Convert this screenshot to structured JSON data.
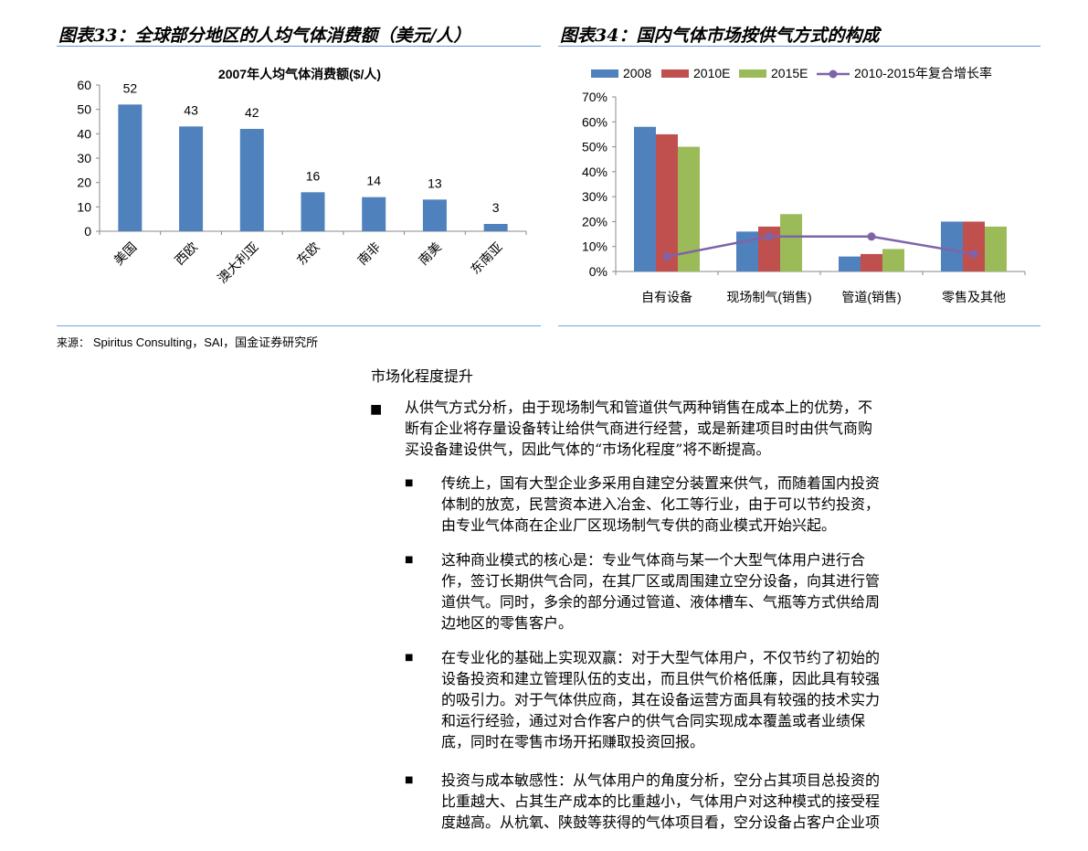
{
  "fig33": {
    "title": "图表33：全球部分地区的人均气体消费额（美元/人）",
    "chart_data": {
      "type": "bar",
      "title": "2007年人均气体消费额($/人)",
      "categories": [
        "美国",
        "西欧",
        "澳大利亚",
        "东欧",
        "南非",
        "南美",
        "东南亚"
      ],
      "values": [
        52,
        43,
        42,
        16,
        14,
        13,
        3
      ],
      "ylim": [
        0,
        60
      ],
      "yticks": [
        "0",
        "10",
        "20",
        "30",
        "40",
        "50",
        "60"
      ],
      "data_labels": [
        "52",
        "43",
        "42",
        "16",
        "14",
        "13",
        "3"
      ],
      "bar_color": "#4f81bd",
      "grid": false
    }
  },
  "fig34": {
    "title": "图表34：国内气体市场按供气方式的构成",
    "chart_data": {
      "type": "bar",
      "categories": [
        "自有设备",
        "现场制气(销售)",
        "管道(销售)",
        "零售及其他"
      ],
      "series": [
        {
          "name": "2008",
          "values": [
            58,
            16,
            6,
            20
          ],
          "color": "#4f81bd"
        },
        {
          "name": "2010E",
          "values": [
            55,
            18,
            7,
            20
          ],
          "color": "#c0504d"
        },
        {
          "name": "2015E",
          "values": [
            50,
            23,
            9,
            18
          ],
          "color": "#9bbb59"
        }
      ],
      "line_series": {
        "name": "2010-2015年复合增长率",
        "values": [
          6,
          14,
          14,
          7
        ],
        "color": "#7f63a8"
      },
      "ylim": [
        0,
        70
      ],
      "yticks": [
        "0%",
        "10%",
        "20%",
        "30%",
        "40%",
        "50%",
        "60%",
        "70%"
      ],
      "legend_position": "top",
      "grid": false
    }
  },
  "source": {
    "label": "来源：",
    "text": "Spiritus Consulting，SAI，国金证券研究所"
  },
  "section_title": "市场化程度提升",
  "main_bullet": {
    "lines": [
      "从供气方式分析，由于现场制气和管道供气两种销售在成本上的优势，不",
      "断有企业将存量设备转让给供气商进行经营，或是新建项目时由供气商购",
      "买设备建设供气，因此气体的“市场化程度”将不断提高。"
    ]
  },
  "sub_bullets": [
    {
      "lines": [
        "传统上，国有大型企业多采用自建空分装置来供气，而随着国内投资",
        "体制的放宽，民营资本进入冶金、化工等行业，由于可以节约投资，",
        "由专业气体商在企业厂区现场制气专供的商业模式开始兴起。"
      ]
    },
    {
      "lines": [
        "这种商业模式的核心是：专业气体商与某一个大型气体用户进行合",
        "作，签订长期供气合同，在其厂区或周围建立空分设备，向其进行管",
        "道供气。同时，多余的部分通过管道、液体槽车、气瓶等方式供给周",
        "边地区的零售客户。"
      ]
    },
    {
      "lines": [
        "在专业化的基础上实现双赢：对于大型气体用户，不仅节约了初始的",
        "设备投资和建立管理队伍的支出，而且供气价格低廉，因此具有较强",
        "的吸引力。对于气体供应商，其在设备运营方面具有较强的技术实力",
        "和运行经验，通过对合作客户的供气合同实现成本覆盖或者业绩保",
        "底，同时在零售市场开拓赚取投资回报。"
      ]
    },
    {
      "lines": [
        "投资与成本敏感性：从气体用户的角度分析，空分占其项目总投资的",
        "比重越大、占其生产成本的比重越小，气体用户对这种模式的接受程",
        "度越高。从杭氧、陕鼓等获得的气体项目看，空分设备占客户企业项"
      ]
    }
  ]
}
